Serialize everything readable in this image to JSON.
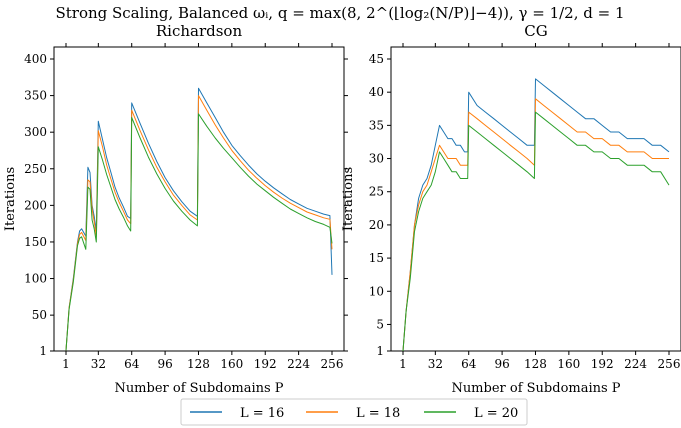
{
  "figure": {
    "suptitle": "Strong Scaling, Balanced ωᵢ, q = max(8, 2^(⌊log₂(N/P)⌋−4)), γ = 1/2, d = 1"
  },
  "legend": {
    "entries": [
      {
        "label": "L = 16",
        "color": "#1f77b4"
      },
      {
        "label": "L = 18",
        "color": "#ff7f0e"
      },
      {
        "label": "L = 20",
        "color": "#2ca02c"
      }
    ]
  },
  "chart_data": [
    {
      "type": "line",
      "title": "Richardson",
      "xlabel": "Number of Subdomains P",
      "ylabel": "Iterations",
      "xlim": [
        1,
        256
      ],
      "ylim": [
        1,
        400
      ],
      "xticks": [
        1,
        32,
        64,
        96,
        128,
        160,
        192,
        224,
        256
      ],
      "yticks": [
        1,
        50,
        100,
        150,
        200,
        250,
        300,
        350,
        400
      ],
      "series": [
        {
          "name": "L = 16",
          "color": "#1f77b4",
          "points": [
            [
              1,
              2
            ],
            [
              4,
              60
            ],
            [
              8,
              100
            ],
            [
              12,
              150
            ],
            [
              14,
              165
            ],
            [
              16,
              168
            ],
            [
              20,
              158
            ],
            [
              22,
              252
            ],
            [
              24,
              245
            ],
            [
              26,
              200
            ],
            [
              28,
              185
            ],
            [
              30,
              165
            ],
            [
              32,
              315
            ],
            [
              36,
              290
            ],
            [
              40,
              265
            ],
            [
              44,
              245
            ],
            [
              48,
              225
            ],
            [
              52,
              210
            ],
            [
              56,
              198
            ],
            [
              60,
              185
            ],
            [
              63,
              182
            ],
            [
              64,
              340
            ],
            [
              72,
              312
            ],
            [
              80,
              285
            ],
            [
              88,
              260
            ],
            [
              96,
              238
            ],
            [
              104,
              220
            ],
            [
              112,
              205
            ],
            [
              120,
              192
            ],
            [
              127,
              185
            ],
            [
              128,
              360
            ],
            [
              136,
              340
            ],
            [
              144,
              320
            ],
            [
              152,
              300
            ],
            [
              160,
              282
            ],
            [
              168,
              268
            ],
            [
              176,
              255
            ],
            [
              184,
              243
            ],
            [
              192,
              233
            ],
            [
              200,
              224
            ],
            [
              208,
              216
            ],
            [
              216,
              208
            ],
            [
              224,
              202
            ],
            [
              232,
              196
            ],
            [
              240,
              192
            ],
            [
              248,
              188
            ],
            [
              254,
              186
            ],
            [
              256,
              105
            ]
          ]
        },
        {
          "name": "L = 18",
          "color": "#ff7f0e",
          "points": [
            [
              1,
              2
            ],
            [
              4,
              60
            ],
            [
              8,
              98
            ],
            [
              12,
              148
            ],
            [
              14,
              160
            ],
            [
              16,
              163
            ],
            [
              20,
              152
            ],
            [
              22,
              235
            ],
            [
              24,
              232
            ],
            [
              26,
              195
            ],
            [
              28,
              178
            ],
            [
              30,
              158
            ],
            [
              32,
              302
            ],
            [
              36,
              280
            ],
            [
              40,
              255
            ],
            [
              44,
              236
            ],
            [
              48,
              218
            ],
            [
              52,
              204
            ],
            [
              56,
              192
            ],
            [
              60,
              180
            ],
            [
              63,
              175
            ],
            [
              64,
              330
            ],
            [
              72,
              302
            ],
            [
              80,
              276
            ],
            [
              88,
              252
            ],
            [
              96,
              232
            ],
            [
              104,
              214
            ],
            [
              112,
              200
            ],
            [
              120,
              187
            ],
            [
              127,
              180
            ],
            [
              128,
              350
            ],
            [
              136,
              330
            ],
            [
              144,
              310
            ],
            [
              152,
              292
            ],
            [
              160,
              275
            ],
            [
              168,
              261
            ],
            [
              176,
              248
            ],
            [
              184,
              237
            ],
            [
              192,
              227
            ],
            [
              200,
              218
            ],
            [
              208,
              210
            ],
            [
              216,
              203
            ],
            [
              224,
              197
            ],
            [
              232,
              191
            ],
            [
              240,
              187
            ],
            [
              248,
              183
            ],
            [
              254,
              181
            ],
            [
              256,
              140
            ]
          ]
        },
        {
          "name": "L = 20",
          "color": "#2ca02c",
          "points": [
            [
              1,
              2
            ],
            [
              4,
              58
            ],
            [
              8,
              95
            ],
            [
              12,
              145
            ],
            [
              14,
              155
            ],
            [
              16,
              157
            ],
            [
              20,
              140
            ],
            [
              22,
              225
            ],
            [
              24,
              222
            ],
            [
              26,
              180
            ],
            [
              28,
              168
            ],
            [
              30,
              150
            ],
            [
              32,
              280
            ],
            [
              36,
              262
            ],
            [
              40,
              242
            ],
            [
              44,
              225
            ],
            [
              48,
              208
            ],
            [
              52,
              195
            ],
            [
              56,
              184
            ],
            [
              60,
              172
            ],
            [
              63,
              165
            ],
            [
              64,
              320
            ],
            [
              72,
              292
            ],
            [
              80,
              266
            ],
            [
              88,
              243
            ],
            [
              96,
              223
            ],
            [
              104,
              206
            ],
            [
              112,
              192
            ],
            [
              120,
              180
            ],
            [
              127,
              172
            ],
            [
              128,
              325
            ],
            [
              136,
              308
            ],
            [
              144,
              292
            ],
            [
              152,
              278
            ],
            [
              160,
              265
            ],
            [
              168,
              252
            ],
            [
              176,
              240
            ],
            [
              184,
              229
            ],
            [
              192,
              220
            ],
            [
              200,
              211
            ],
            [
              208,
              203
            ],
            [
              216,
              195
            ],
            [
              224,
              189
            ],
            [
              232,
              183
            ],
            [
              240,
              178
            ],
            [
              248,
              174
            ],
            [
              254,
              170
            ],
            [
              256,
              148
            ]
          ]
        }
      ]
    },
    {
      "type": "line",
      "title": "CG",
      "xlabel": "Number of Subdomains P",
      "ylabel": "Iterations",
      "xlim": [
        1,
        256
      ],
      "ylim": [
        1,
        45
      ],
      "xticks": [
        1,
        32,
        64,
        96,
        128,
        160,
        192,
        224,
        256
      ],
      "yticks": [
        1,
        5,
        10,
        15,
        20,
        25,
        30,
        35,
        40,
        45
      ],
      "series": [
        {
          "name": "L = 16",
          "color": "#1f77b4",
          "points": [
            [
              1,
              1
            ],
            [
              4,
              7
            ],
            [
              8,
              13
            ],
            [
              12,
              20
            ],
            [
              16,
              24
            ],
            [
              20,
              26
            ],
            [
              24,
              27
            ],
            [
              28,
              29
            ],
            [
              32,
              32
            ],
            [
              36,
              35
            ],
            [
              40,
              34
            ],
            [
              44,
              33
            ],
            [
              48,
              33
            ],
            [
              52,
              32
            ],
            [
              56,
              32
            ],
            [
              60,
              31
            ],
            [
              63,
              31
            ],
            [
              64,
              40
            ],
            [
              72,
              38
            ],
            [
              80,
              37
            ],
            [
              88,
              36
            ],
            [
              96,
              35
            ],
            [
              104,
              34
            ],
            [
              112,
              33
            ],
            [
              120,
              32
            ],
            [
              127,
              32
            ],
            [
              128,
              42
            ],
            [
              136,
              41
            ],
            [
              144,
              40
            ],
            [
              152,
              39
            ],
            [
              160,
              38
            ],
            [
              168,
              37
            ],
            [
              176,
              36
            ],
            [
              184,
              36
            ],
            [
              192,
              35
            ],
            [
              200,
              34
            ],
            [
              208,
              34
            ],
            [
              216,
              33
            ],
            [
              224,
              33
            ],
            [
              232,
              33
            ],
            [
              240,
              32
            ],
            [
              248,
              32
            ],
            [
              256,
              31
            ]
          ]
        },
        {
          "name": "L = 18",
          "color": "#ff7f0e",
          "points": [
            [
              1,
              1
            ],
            [
              4,
              7
            ],
            [
              8,
              13
            ],
            [
              12,
              20
            ],
            [
              16,
              23
            ],
            [
              20,
              25
            ],
            [
              24,
              26
            ],
            [
              28,
              28
            ],
            [
              32,
              30
            ],
            [
              36,
              32
            ],
            [
              40,
              31
            ],
            [
              44,
              30
            ],
            [
              48,
              30
            ],
            [
              52,
              30
            ],
            [
              56,
              29
            ],
            [
              60,
              29
            ],
            [
              63,
              29
            ],
            [
              64,
              37
            ],
            [
              72,
              36
            ],
            [
              80,
              35
            ],
            [
              88,
              34
            ],
            [
              96,
              33
            ],
            [
              104,
              32
            ],
            [
              112,
              31
            ],
            [
              120,
              30
            ],
            [
              127,
              29
            ],
            [
              128,
              39
            ],
            [
              136,
              38
            ],
            [
              144,
              37
            ],
            [
              152,
              36
            ],
            [
              160,
              35
            ],
            [
              168,
              34
            ],
            [
              176,
              34
            ],
            [
              184,
              33
            ],
            [
              192,
              33
            ],
            [
              200,
              32
            ],
            [
              208,
              32
            ],
            [
              216,
              31
            ],
            [
              224,
              31
            ],
            [
              232,
              31
            ],
            [
              240,
              30
            ],
            [
              248,
              30
            ],
            [
              256,
              30
            ]
          ]
        },
        {
          "name": "L = 20",
          "color": "#2ca02c",
          "points": [
            [
              1,
              1
            ],
            [
              4,
              7
            ],
            [
              8,
              12
            ],
            [
              12,
              19
            ],
            [
              16,
              22
            ],
            [
              20,
              24
            ],
            [
              24,
              25
            ],
            [
              28,
              26
            ],
            [
              32,
              28
            ],
            [
              36,
              31
            ],
            [
              40,
              30
            ],
            [
              44,
              29
            ],
            [
              48,
              28
            ],
            [
              52,
              28
            ],
            [
              56,
              27
            ],
            [
              60,
              27
            ],
            [
              63,
              27
            ],
            [
              64,
              35
            ],
            [
              72,
              34
            ],
            [
              80,
              33
            ],
            [
              88,
              32
            ],
            [
              96,
              31
            ],
            [
              104,
              30
            ],
            [
              112,
              29
            ],
            [
              120,
              28
            ],
            [
              127,
              27
            ],
            [
              128,
              37
            ],
            [
              136,
              36
            ],
            [
              144,
              35
            ],
            [
              152,
              34
            ],
            [
              160,
              33
            ],
            [
              168,
              32
            ],
            [
              176,
              32
            ],
            [
              184,
              31
            ],
            [
              192,
              31
            ],
            [
              200,
              30
            ],
            [
              208,
              30
            ],
            [
              216,
              29
            ],
            [
              224,
              29
            ],
            [
              232,
              29
            ],
            [
              240,
              28
            ],
            [
              248,
              28
            ],
            [
              256,
              26
            ]
          ]
        }
      ]
    }
  ]
}
